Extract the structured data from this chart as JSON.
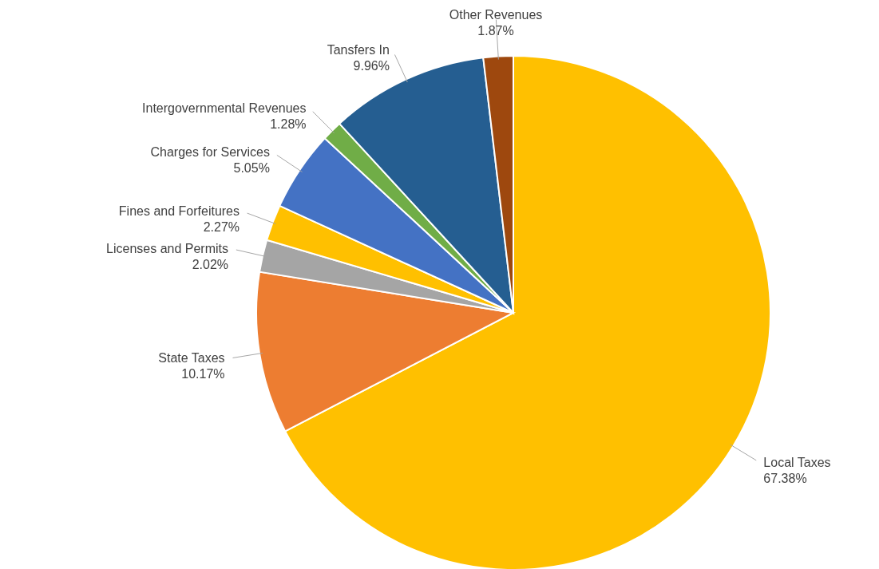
{
  "chart_data": {
    "type": "pie",
    "categories": [
      "Local Taxes",
      "State Taxes",
      "Licenses and Permits",
      "Fines and Forfeitures",
      "Charges for Services",
      "Intergovernmental Revenues",
      "Tansfers In",
      "Other Revenues"
    ],
    "values": [
      67.38,
      10.17,
      2.02,
      2.27,
      5.05,
      1.28,
      9.96,
      1.87
    ],
    "value_labels": [
      "67.38%",
      "10.17%",
      "2.02%",
      "2.27%",
      "5.05%",
      "1.28%",
      "9.96%",
      "1.87%"
    ],
    "colors": [
      "#ffc000",
      "#ed7d31",
      "#a5a5a5",
      "#ffc000",
      "#4472c4",
      "#70ad47",
      "#255e91",
      "#9e480e"
    ]
  }
}
